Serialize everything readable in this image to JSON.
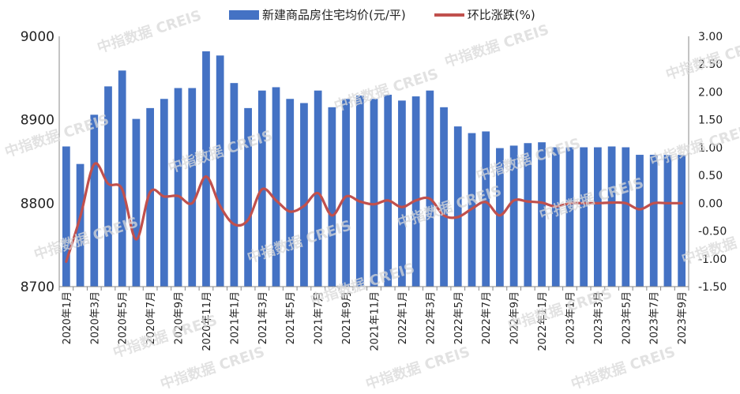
{
  "chart_data": {
    "type": "bar+line",
    "categories": [
      "2020年1月",
      "2020年2月",
      "2020年3月",
      "2020年4月",
      "2020年5月",
      "2020年6月",
      "2020年7月",
      "2020年8月",
      "2020年9月",
      "2020年10月",
      "2020年11月",
      "2020年12月",
      "2021年1月",
      "2021年2月",
      "2021年3月",
      "2021年4月",
      "2021年5月",
      "2021年6月",
      "2021年7月",
      "2021年8月",
      "2021年9月",
      "2021年10月",
      "2021年11月",
      "2021年12月",
      "2022年1月",
      "2022年2月",
      "2022年3月",
      "2022年4月",
      "2022年5月",
      "2022年6月",
      "2022年7月",
      "2022年8月",
      "2022年9月",
      "2022年10月",
      "2022年11月",
      "2022年12月",
      "2023年1月",
      "2023年2月",
      "2023年3月",
      "2023年4月",
      "2023年5月",
      "2023年6月",
      "2023年7月",
      "2023年8月",
      "2023年9月"
    ],
    "tick_labels": [
      "2020年1月",
      "2020年3月",
      "2020年5月",
      "2020年7月",
      "2020年9月",
      "2020年11月",
      "2021年1月",
      "2021年3月",
      "2021年5月",
      "2021年7月",
      "2021年9月",
      "2021年11月",
      "2022年1月",
      "2022年3月",
      "2022年5月",
      "2022年7月",
      "2022年9月",
      "2022年11月",
      "2023年1月",
      "2023年3月",
      "2023年5月",
      "2023年7月",
      "2023年9月"
    ],
    "series": [
      {
        "name": "新建商品房住宅均价(元/平)",
        "type": "bar",
        "axis": "left",
        "color": "#4472C4",
        "values": [
          8868,
          8847,
          8906,
          8940,
          8959,
          8901,
          8914,
          8925,
          8938,
          8938,
          8982,
          8977,
          8944,
          8914,
          8935,
          8939,
          8925,
          8920,
          8935,
          8915,
          8925,
          8929,
          8925,
          8930,
          8923,
          8928,
          8935,
          8915,
          8892,
          8884,
          8886,
          8866,
          8869,
          8872,
          8873,
          8867,
          8867,
          8867,
          8867,
          8868,
          8867,
          8858,
          8858,
          8858,
          8858
        ]
      },
      {
        "name": "环比涨跌(%)",
        "type": "line",
        "axis": "right",
        "color": "#C0504D",
        "values": [
          -1.05,
          -0.25,
          0.7,
          0.35,
          0.25,
          -0.65,
          0.2,
          0.12,
          0.13,
          0.0,
          0.48,
          -0.05,
          -0.38,
          -0.3,
          0.25,
          0.05,
          -0.15,
          -0.05,
          0.18,
          -0.22,
          0.12,
          0.03,
          -0.02,
          0.05,
          -0.07,
          0.05,
          0.08,
          -0.22,
          -0.25,
          -0.1,
          0.02,
          -0.22,
          0.05,
          0.03,
          0.01,
          -0.06,
          0.0,
          0.0,
          0.0,
          0.01,
          0.0,
          -0.11,
          0.0,
          0.0,
          0.0
        ]
      }
    ],
    "y_left": {
      "min": 8700,
      "max": 9000,
      "ticks": [
        "8700",
        "8800",
        "8900",
        "9000"
      ]
    },
    "y_right": {
      "min": -1.5,
      "max": 3.0,
      "ticks": [
        "-1.50",
        "-1.00",
        "-0.50",
        "0.00",
        "0.50",
        "1.00",
        "1.50",
        "2.00",
        "2.50",
        "3.00"
      ]
    },
    "legend": {
      "position": "top",
      "bar_label": "新建商品房住宅均价(元/平)",
      "line_label": "环比涨跌(%)"
    },
    "grid": false
  },
  "watermark_text": "中指数据 CREIS"
}
